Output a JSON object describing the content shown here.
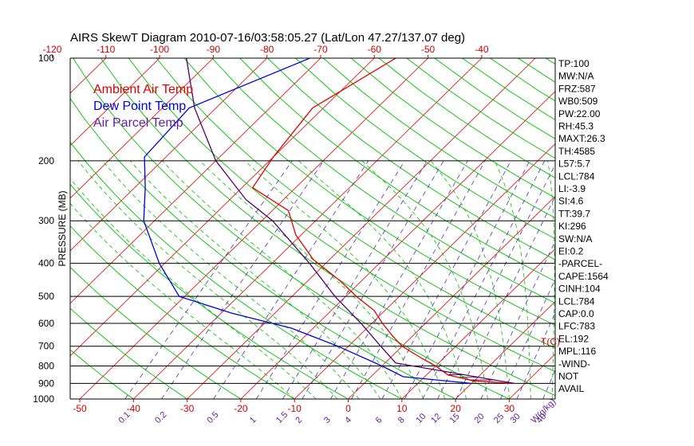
{
  "title": "AIRS SkewT Diagram 2010-07-16/03:58:05.27 (Lat/Lon 47.27/137.07 deg)",
  "colors": {
    "ambient": "#e00000",
    "dewpoint": "#0000e0",
    "parcel": "#500070",
    "isotherm": "#e00000",
    "dry_adiabat": "#00c000",
    "moist_adiabat": "#00c000",
    "mixing_ratio": "#5030b0",
    "isobar": "#000000",
    "cape_hatch": "#200040"
  },
  "legend": {
    "ambient": "Ambient Air Temp",
    "dewpoint": "Dew Point Temp",
    "parcel": "Air Parcel Temp"
  },
  "chart_data": {
    "type": "line",
    "title": "AIRS SkewT Diagram 2010-07-16/03:58:05.27 (Lat/Lon 47.27/137.07 deg)",
    "ylabel": "PRESSURE (MB)",
    "xlabel": "T(C)",
    "mixing_label": "W(g/kg)",
    "ylim": [
      1000,
      100
    ],
    "pressure_levels": [
      100,
      200,
      300,
      400,
      500,
      600,
      700,
      800,
      900,
      1000
    ],
    "pressure_tick_labels": [
      "100",
      "200",
      "300",
      "400",
      "500",
      "600",
      "700",
      "800",
      "900",
      "1000"
    ],
    "temp_top_ticks": [
      -120,
      -110,
      -100,
      -90,
      -80,
      -70,
      -60,
      -50,
      -40
    ],
    "temp_top_labels": [
      "-120",
      "-110",
      "-100",
      "-90",
      "-80",
      "-70",
      "-60",
      "-50",
      "-40"
    ],
    "temp_bottom_ticks": [
      -50,
      -40,
      -30,
      -20,
      -10,
      0,
      10,
      20,
      30
    ],
    "temp_bottom_labels": [
      "-50",
      "-40",
      "-30",
      "-20",
      "-10",
      "0",
      "10",
      "20",
      "30"
    ],
    "mixing_ratio_labels": [
      "0.1",
      "0.2",
      "0.5",
      "1",
      "1.5",
      "2",
      "3",
      "4",
      "6",
      "8",
      "10",
      "12",
      "15",
      "20",
      "25",
      "30",
      "40"
    ],
    "series": [
      {
        "name": "Ambient Air Temp",
        "points": [
          [
            100,
            -56
          ],
          [
            140,
            -62
          ],
          [
            195,
            -60
          ],
          [
            240,
            -58
          ],
          [
            280,
            -47
          ],
          [
            330,
            -41
          ],
          [
            390,
            -33
          ],
          [
            450,
            -24
          ],
          [
            500,
            -18
          ],
          [
            550,
            -12
          ],
          [
            600,
            -8
          ],
          [
            650,
            -4
          ],
          [
            700,
            0
          ],
          [
            760,
            6
          ],
          [
            800,
            10
          ],
          [
            850,
            14
          ],
          [
            885,
            20
          ],
          [
            900,
            28
          ]
        ]
      },
      {
        "name": "Dew Point Temp",
        "points": [
          [
            100,
            -72
          ],
          [
            140,
            -85
          ],
          [
            195,
            -84
          ],
          [
            240,
            -78
          ],
          [
            300,
            -72
          ],
          [
            400,
            -61
          ],
          [
            500,
            -51
          ],
          [
            560,
            -38
          ],
          [
            620,
            -24
          ],
          [
            700,
            -12
          ],
          [
            800,
            0
          ],
          [
            860,
            6
          ],
          [
            900,
            20
          ]
        ]
      },
      {
        "name": "Air Parcel Temp",
        "points": [
          [
            100,
            -95
          ],
          [
            140,
            -84
          ],
          [
            200,
            -70
          ],
          [
            260,
            -57
          ],
          [
            300,
            -48
          ],
          [
            400,
            -33
          ],
          [
            500,
            -22
          ],
          [
            600,
            -12
          ],
          [
            700,
            -4
          ],
          [
            784,
            2
          ],
          [
            900,
            28
          ]
        ]
      }
    ]
  },
  "indices": [
    "TP:100",
    "MW:N/A",
    "FRZ:587",
    "WB0:509",
    "PW:22.00",
    "RH:45.3",
    "MAXT:26.3",
    "TH:4585",
    "L57:5.7",
    "LCL:784",
    "LI:-3.9",
    "SI:4.6",
    "TT:39.7",
    "KI:296",
    "SW:N/A",
    "EI:0.2",
    "-PARCEL-",
    "CAPE:1564",
    "CINH:104",
    "LCL:784",
    "CAP:0.0",
    "LFC:783",
    "EL:192",
    "MPL:116",
    "-WIND-",
    " NOT",
    " AVAIL"
  ]
}
